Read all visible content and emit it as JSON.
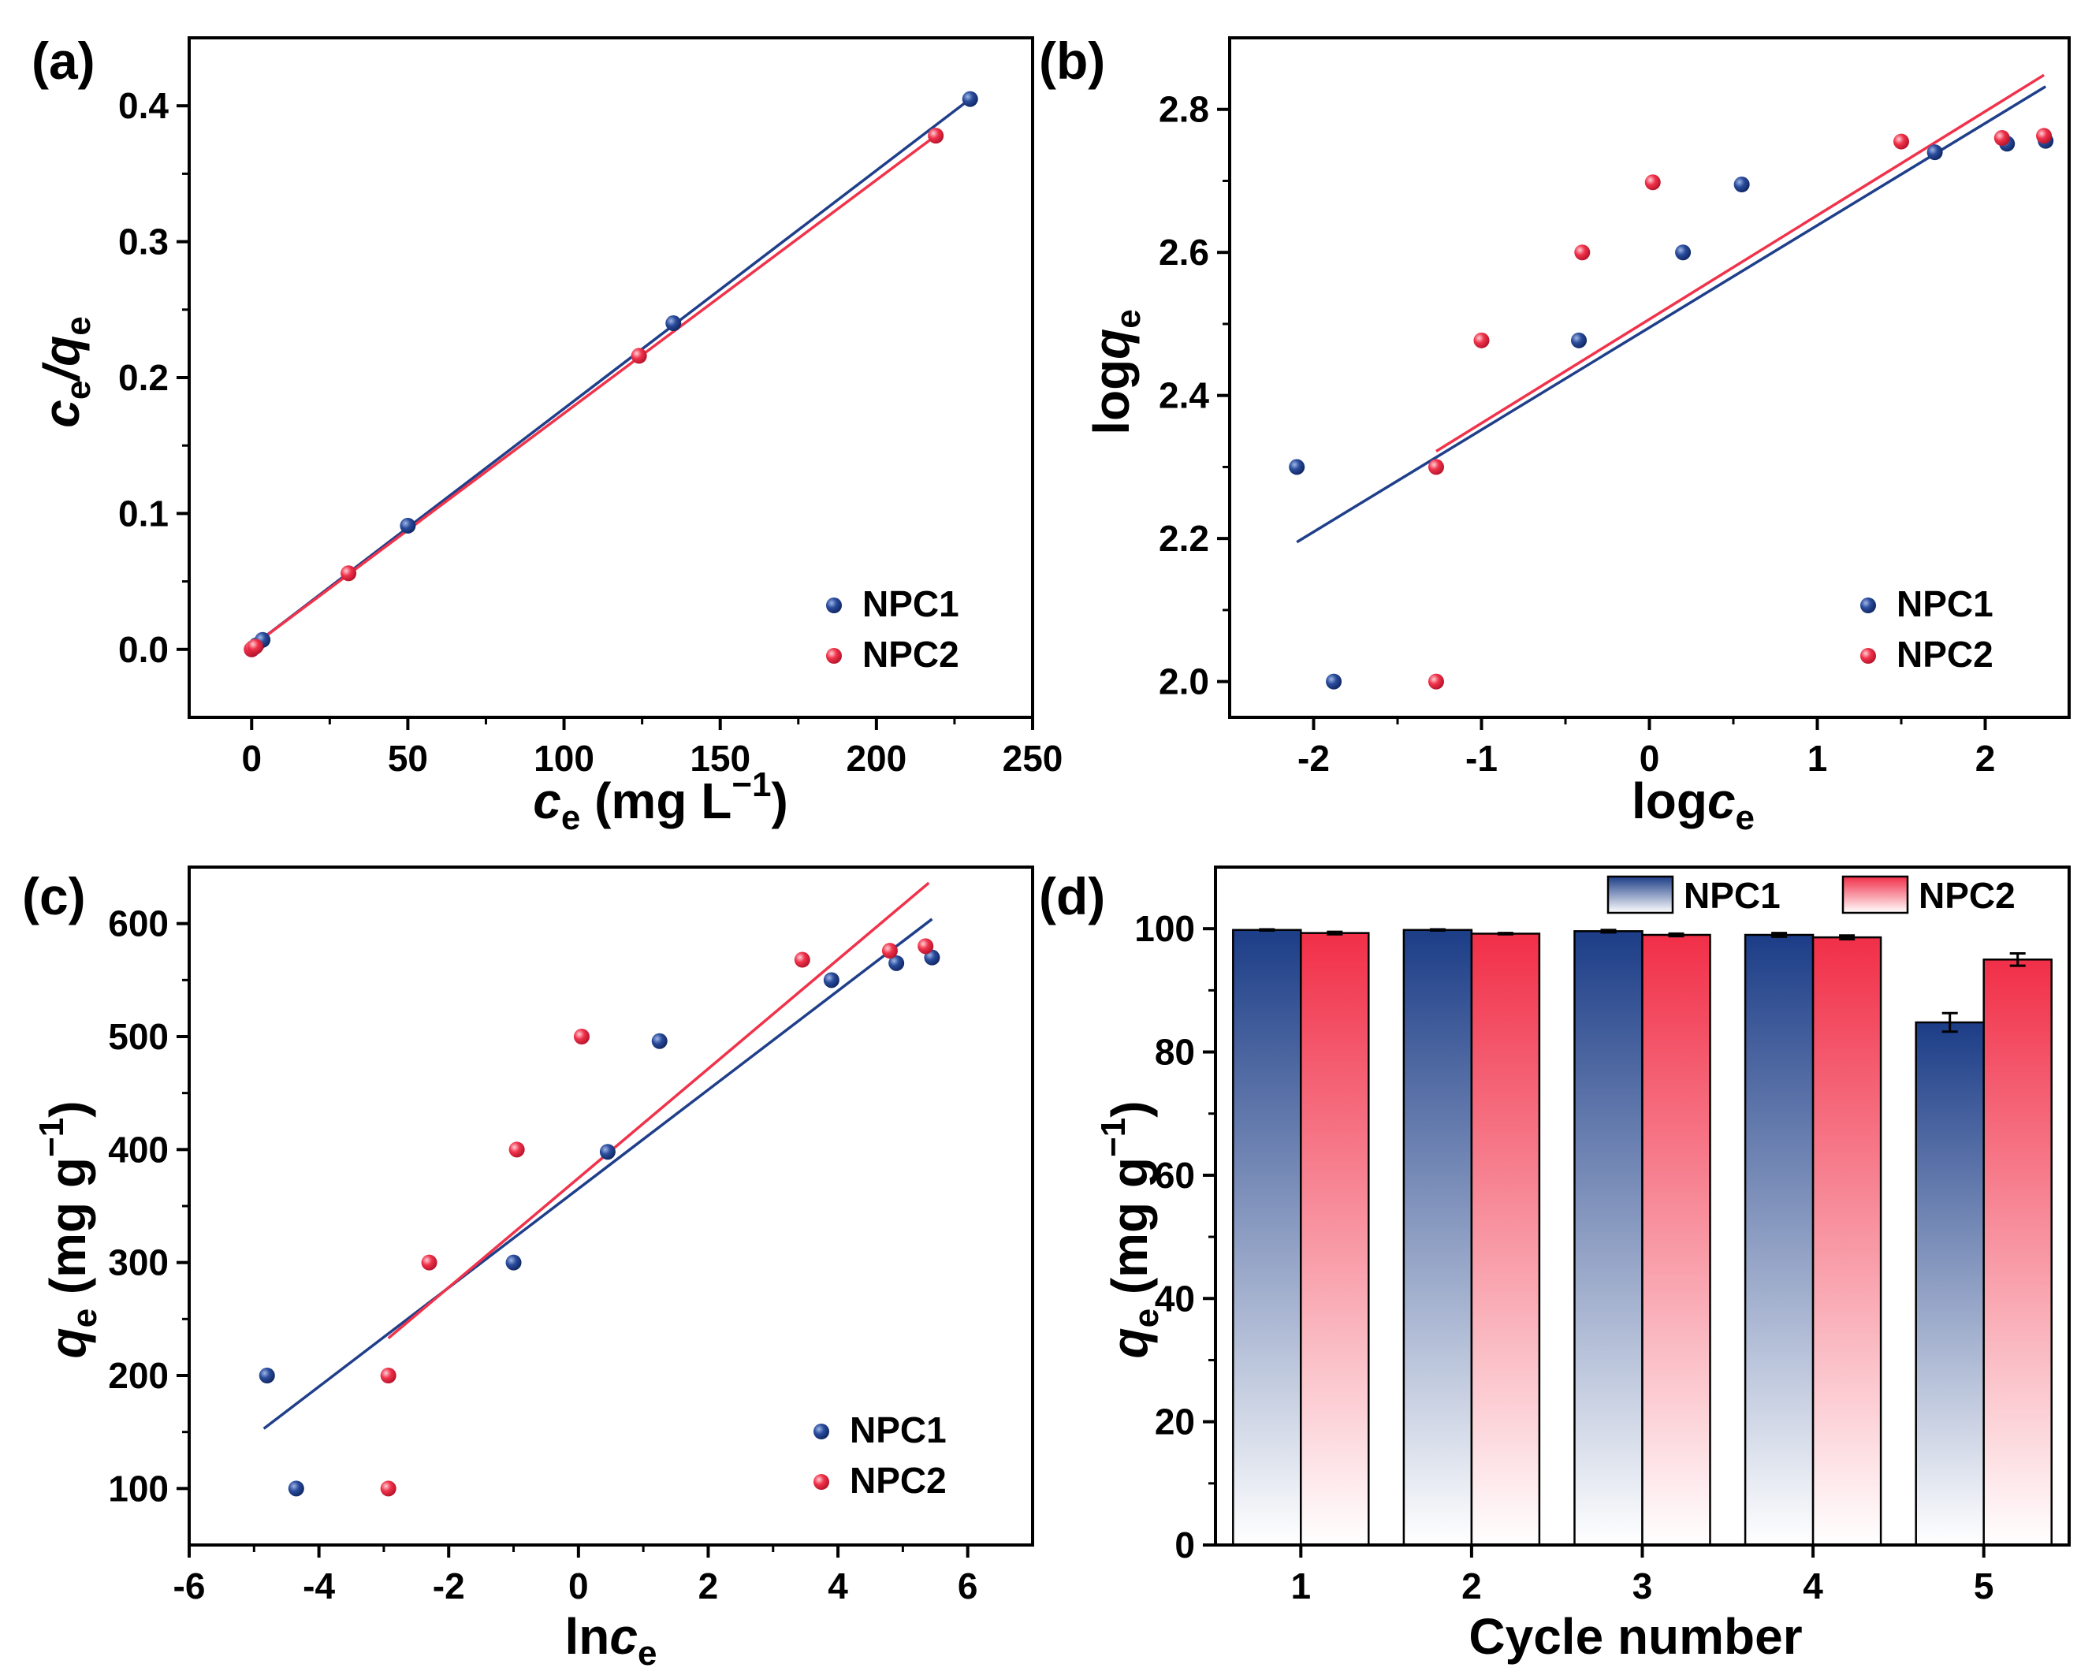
{
  "colors": {
    "npc1": "#1f3f8a",
    "npc2": "#f0334b",
    "npc1_fill_top": "#1c3d87",
    "npc2_fill_top": "#f12f48"
  },
  "chart_data": [
    {
      "id": "a",
      "type": "scatter",
      "panel_label": "(a)",
      "xlabel_main": "c",
      "xlabel_sub": "e",
      "xlabel_rest": " (mg L",
      "xlabel_sup": "−1",
      "xlabel_close": ")",
      "ylabel_parts": [
        "c",
        "e",
        "/q",
        "e"
      ],
      "xlim": [
        -20,
        250
      ],
      "ylim": [
        -0.05,
        0.45
      ],
      "xticks": [
        0,
        50,
        100,
        150,
        200,
        250
      ],
      "xtick_labels": [
        "0",
        "50",
        "100",
        "150",
        "200",
        "250"
      ],
      "yticks": [
        0.0,
        0.1,
        0.2,
        0.3,
        0.4
      ],
      "ytick_labels": [
        "0.0",
        "0.1",
        "0.2",
        "0.3",
        "0.4"
      ],
      "legend": [
        "NPC1",
        "NPC2"
      ],
      "series": [
        {
          "name": "NPC1",
          "x": [
            0,
            0.5,
            1.5,
            3.5,
            50,
            135,
            230
          ],
          "y": [
            0.0,
            0.001,
            0.003,
            0.007,
            0.091,
            0.24,
            0.405
          ],
          "fit": [
            [
              0,
              0.002
            ],
            [
              230,
              0.405
            ]
          ]
        },
        {
          "name": "NPC2",
          "x": [
            0,
            0.4,
            1.2,
            31,
            124,
            219
          ],
          "y": [
            0.0,
            0.001,
            0.002,
            0.056,
            0.216,
            0.378
          ],
          "fit": [
            [
              0,
              0.002
            ],
            [
              219,
              0.378
            ]
          ]
        }
      ]
    },
    {
      "id": "b",
      "type": "scatter",
      "panel_label": "(b)",
      "xlabel_parts": [
        "log",
        "c",
        "e"
      ],
      "ylabel_parts": [
        "log",
        "q",
        "e"
      ],
      "xlim": [
        -2.5,
        2.5
      ],
      "ylim": [
        1.95,
        2.9
      ],
      "xticks": [
        -2,
        -1,
        0,
        1,
        2
      ],
      "xtick_labels": [
        "-2",
        "-1",
        "0",
        "1",
        "2"
      ],
      "yticks": [
        2.0,
        2.2,
        2.4,
        2.6,
        2.8
      ],
      "ytick_labels": [
        "2.0",
        "2.2",
        "2.4",
        "2.6",
        "2.8"
      ],
      "legend": [
        "NPC1",
        "NPC2"
      ],
      "series": [
        {
          "name": "NPC1",
          "x": [
            -2.1,
            -1.88,
            -0.42,
            0.2,
            0.55,
            1.7,
            2.13,
            2.36
          ],
          "y": [
            2.3,
            2.0,
            2.477,
            2.6,
            2.695,
            2.74,
            2.752,
            2.756
          ],
          "fit": [
            [
              -2.1,
              2.195
            ],
            [
              2.36,
              2.832
            ]
          ]
        },
        {
          "name": "NPC2",
          "x": [
            -1.27,
            -1.27,
            -1.0,
            -0.4,
            0.02,
            1.5,
            2.1,
            2.35
          ],
          "y": [
            2.3,
            2.0,
            2.477,
            2.6,
            2.698,
            2.755,
            2.76,
            2.763
          ],
          "fit": [
            [
              -1.27,
              2.322
            ],
            [
              2.35,
              2.848
            ]
          ]
        }
      ]
    },
    {
      "id": "c",
      "type": "scatter",
      "panel_label": "(c)",
      "xlabel_parts": [
        "ln",
        "c",
        "e"
      ],
      "ylabel_main": "q",
      "ylabel_sub": "e",
      "ylabel_rest": " (mg g",
      "ylabel_sup": "−1",
      "ylabel_close": ")",
      "xlim": [
        -6,
        7
      ],
      "ylim": [
        50,
        650
      ],
      "xticks": [
        -6,
        -4,
        -2,
        0,
        2,
        4,
        6
      ],
      "xtick_labels": [
        "-6",
        "-4",
        "-2",
        "0",
        "2",
        "4",
        "6"
      ],
      "yticks": [
        100,
        200,
        300,
        400,
        500,
        600
      ],
      "ytick_labels": [
        "100",
        "200",
        "300",
        "400",
        "500",
        "600"
      ],
      "legend": [
        "NPC1",
        "NPC2"
      ],
      "series": [
        {
          "name": "NPC1",
          "x": [
            -4.8,
            -4.35,
            -1.0,
            0.45,
            1.25,
            3.9,
            4.9,
            5.45
          ],
          "y": [
            200,
            100,
            300,
            398,
            496,
            550,
            565,
            570
          ],
          "fit": [
            [
              -4.85,
              153
            ],
            [
              5.45,
              604
            ]
          ]
        },
        {
          "name": "NPC2",
          "x": [
            -2.93,
            -2.93,
            -2.3,
            -0.95,
            0.05,
            3.45,
            4.8,
            5.35
          ],
          "y": [
            100,
            200,
            300,
            400,
            500,
            568,
            576,
            580
          ],
          "fit": [
            [
              -2.93,
              233
            ],
            [
              5.4,
              636
            ]
          ]
        }
      ]
    },
    {
      "id": "d",
      "type": "bar",
      "panel_label": "(d)",
      "xlabel": "Cycle number",
      "ylabel_main": "q",
      "ylabel_sub": "e",
      "ylabel_rest": " (mg g",
      "ylabel_sup": "−1",
      "ylabel_close": ")",
      "categories": [
        "1",
        "2",
        "3",
        "4",
        "5"
      ],
      "ylim": [
        0,
        110
      ],
      "yticks": [
        0,
        20,
        40,
        60,
        80,
        100
      ],
      "ytick_labels": [
        "0",
        "20",
        "40",
        "60",
        "80",
        "100"
      ],
      "legend": [
        "NPC1",
        "NPC2"
      ],
      "series": [
        {
          "name": "NPC1",
          "values": [
            99.8,
            99.8,
            99.6,
            99.0,
            84.8
          ],
          "errors": [
            0.1,
            0.1,
            0.2,
            0.3,
            1.5
          ]
        },
        {
          "name": "NPC2",
          "values": [
            99.3,
            99.2,
            99.0,
            98.6,
            95.0
          ],
          "errors": [
            0.2,
            0.1,
            0.2,
            0.3,
            1.0
          ]
        }
      ]
    }
  ]
}
